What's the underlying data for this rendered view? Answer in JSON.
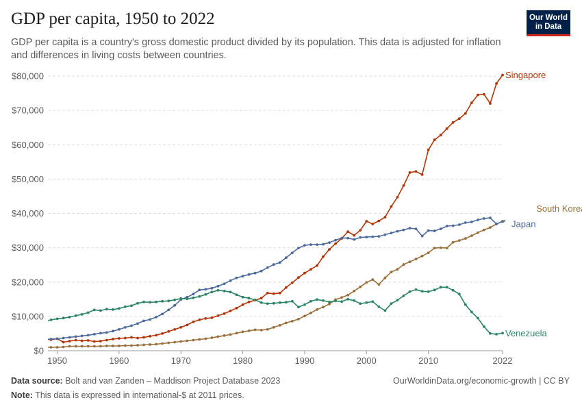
{
  "header": {
    "title": "GDP per capita, 1950 to 2022",
    "subtitle": "GDP per capita is a country's gross domestic product divided by its population. This data is adjusted for inflation and differences in living costs between countries.",
    "logo_line1": "Our World",
    "logo_line2": "in Data"
  },
  "footer": {
    "source_label": "Data source:",
    "source_text": "Bolt and van Zanden – Maddison Project Database 2023",
    "note_label": "Note:",
    "note_text": "This data is expressed in international-$ at 2011 prices.",
    "credit": "OurWorldinData.org/economic-growth | CC BY"
  },
  "colors": {
    "Singapore": "#b13507",
    "South Korea": "#9a6f3b",
    "Japan": "#4c6a9c",
    "Venezuela": "#2c8465",
    "grid": "#dddddd",
    "text": "#5b5b5b"
  },
  "chart_data": {
    "type": "line",
    "title": "GDP per capita, 1950 to 2022",
    "xlim": [
      1948.5,
      2022
    ],
    "ylim": [
      0,
      80000
    ],
    "x_ticks": [
      {
        "value": 1950,
        "label": "1950"
      },
      {
        "value": 1960,
        "label": "1960"
      },
      {
        "value": 1970,
        "label": "1970"
      },
      {
        "value": 1980,
        "label": "1980"
      },
      {
        "value": 1990,
        "label": "1990"
      },
      {
        "value": 2000,
        "label": "2000"
      },
      {
        "value": 2010,
        "label": "2010"
      },
      {
        "value": 2022,
        "label": "2022"
      }
    ],
    "y_ticks": [
      {
        "value": 0,
        "label": "$0"
      },
      {
        "value": 10000,
        "label": "$10,000"
      },
      {
        "value": 20000,
        "label": "$20,000"
      },
      {
        "value": 30000,
        "label": "$30,000"
      },
      {
        "value": 40000,
        "label": "$40,000"
      },
      {
        "value": 50000,
        "label": "$50,000"
      },
      {
        "value": 60000,
        "label": "$60,000"
      },
      {
        "value": 70000,
        "label": "$70,000"
      },
      {
        "value": 80000,
        "label": "$80,000"
      }
    ],
    "grid": true,
    "legend": "labels at line ends",
    "series": [
      {
        "name": "Singapore",
        "start_year": 1948,
        "values": [
          3400,
          3200,
          3500,
          2500,
          2800,
          3100,
          2900,
          3000,
          2700,
          2800,
          3100,
          3400,
          3600,
          3700,
          3900,
          3700,
          3900,
          4200,
          4500,
          5000,
          5600,
          6200,
          6800,
          7500,
          8400,
          9000,
          9400,
          9600,
          10200,
          10800,
          11600,
          12400,
          13400,
          14200,
          14700,
          15300,
          16800,
          16600,
          16800,
          18400,
          19800,
          21300,
          22600,
          23700,
          24800,
          27400,
          29500,
          31200,
          32700,
          34700,
          33600,
          35100,
          37700,
          36900,
          37800,
          38900,
          42000,
          44700,
          48100,
          51900,
          52200,
          51300,
          58500,
          61400,
          62800,
          64700,
          66500,
          67600,
          69100,
          72200,
          74500,
          74700,
          72000,
          77800,
          80300
        ]
      },
      {
        "name": "South Korea",
        "start_year": 1948,
        "values": [
          1000,
          1000,
          1000,
          1100,
          1300,
          1300,
          1300,
          1300,
          1300,
          1300,
          1400,
          1400,
          1400,
          1500,
          1500,
          1600,
          1700,
          1800,
          1900,
          2100,
          2300,
          2500,
          2700,
          2900,
          3100,
          3300,
          3500,
          3800,
          4100,
          4400,
          4700,
          5100,
          5500,
          5800,
          6100,
          6000,
          6200,
          6800,
          7400,
          8100,
          8600,
          9200,
          10100,
          11000,
          12000,
          12700,
          13600,
          14900,
          15500,
          16200,
          17400,
          18600,
          19900,
          20700,
          19300,
          21200,
          22900,
          23700,
          25100,
          25900,
          26700,
          27600,
          28500,
          29900,
          30000,
          29900,
          31600,
          32100,
          32700,
          33500,
          34400,
          35200,
          35900,
          36900,
          37700,
          38300,
          38700,
          38600,
          40000,
          41000
        ]
      },
      {
        "name": "Japan",
        "start_year": 1948,
        "values": [
          3300,
          3400,
          3500,
          3700,
          3900,
          4100,
          4300,
          4500,
          4800,
          5100,
          5300,
          5700,
          6200,
          6800,
          7300,
          7900,
          8700,
          9100,
          9800,
          10700,
          11900,
          13200,
          14900,
          15600,
          16500,
          17700,
          17900,
          18200,
          18800,
          19500,
          20400,
          21200,
          21700,
          22200,
          22600,
          23200,
          24200,
          25100,
          25700,
          27100,
          28500,
          29900,
          30700,
          30900,
          30900,
          31000,
          31500,
          32200,
          32800,
          32800,
          32400,
          33000,
          33100,
          33200,
          33300,
          33800,
          34300,
          34800,
          35200,
          35700,
          35500,
          33400,
          35000,
          34900,
          35500,
          36300,
          36400,
          36700,
          37300,
          37500,
          38100,
          38500,
          38700,
          36900,
          37600,
          38100
        ]
      },
      {
        "name": "Venezuela",
        "start_year": 1948,
        "values": [
          8500,
          9000,
          9300,
          9500,
          9800,
          10200,
          10600,
          11100,
          11900,
          11700,
          12100,
          12000,
          12300,
          12800,
          13100,
          13800,
          14200,
          14100,
          14200,
          14400,
          14500,
          14800,
          15200,
          15100,
          15400,
          15800,
          16400,
          17100,
          17600,
          17400,
          17100,
          16300,
          15600,
          15300,
          14800,
          14000,
          13700,
          13800,
          14000,
          14100,
          14400,
          12700,
          13400,
          14400,
          14900,
          14600,
          14200,
          14500,
          14300,
          15000,
          14600,
          13700,
          14000,
          14300,
          12800,
          11700,
          13700,
          14700,
          16000,
          17200,
          17800,
          17300,
          17200,
          17700,
          18500,
          18500,
          17600,
          16500,
          13400,
          11300,
          9500,
          7000,
          5000,
          4800,
          5100
        ]
      }
    ]
  }
}
